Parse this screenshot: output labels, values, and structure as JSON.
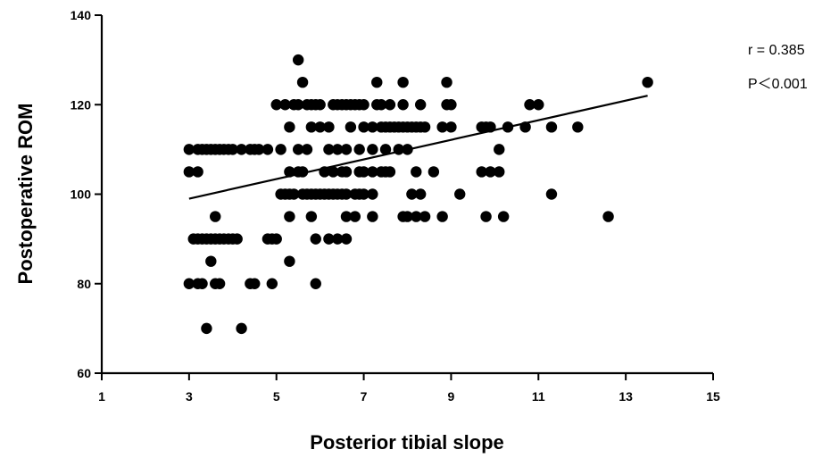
{
  "chart_data": {
    "type": "scatter",
    "xlabel": "Posterior tibial slope",
    "ylabel": "Postoperative ROM",
    "xlim": [
      1,
      15
    ],
    "ylim": [
      60,
      140
    ],
    "xticks": [
      1,
      3,
      5,
      7,
      9,
      11,
      13,
      15
    ],
    "yticks": [
      60,
      80,
      100,
      120,
      140
    ],
    "grid": false,
    "marker_color": "#000000",
    "annotations": {
      "r": "r = 0.385",
      "p": "P＜0.001"
    },
    "regression_line": {
      "x": [
        3.0,
        13.5
      ],
      "y": [
        99.0,
        122.0
      ]
    },
    "points": [
      [
        3.4,
        70
      ],
      [
        4.2,
        70
      ],
      [
        3.0,
        80
      ],
      [
        3.2,
        80
      ],
      [
        3.3,
        80
      ],
      [
        3.6,
        80
      ],
      [
        3.7,
        80
      ],
      [
        4.4,
        80
      ],
      [
        4.5,
        80
      ],
      [
        4.9,
        80
      ],
      [
        5.9,
        80
      ],
      [
        3.5,
        85
      ],
      [
        5.3,
        85
      ],
      [
        3.1,
        90
      ],
      [
        3.2,
        90
      ],
      [
        3.3,
        90
      ],
      [
        3.4,
        90
      ],
      [
        3.5,
        90
      ],
      [
        3.6,
        90
      ],
      [
        3.7,
        90
      ],
      [
        3.8,
        90
      ],
      [
        3.9,
        90
      ],
      [
        4.0,
        90
      ],
      [
        4.1,
        90
      ],
      [
        4.8,
        90
      ],
      [
        4.9,
        90
      ],
      [
        5.0,
        90
      ],
      [
        5.9,
        90
      ],
      [
        6.2,
        90
      ],
      [
        6.4,
        90
      ],
      [
        6.6,
        90
      ],
      [
        3.6,
        95
      ],
      [
        5.3,
        95
      ],
      [
        5.8,
        95
      ],
      [
        6.6,
        95
      ],
      [
        6.8,
        95
      ],
      [
        7.2,
        95
      ],
      [
        7.9,
        95
      ],
      [
        8.0,
        95
      ],
      [
        8.2,
        95
      ],
      [
        8.4,
        95
      ],
      [
        8.8,
        95
      ],
      [
        9.8,
        95
      ],
      [
        10.2,
        95
      ],
      [
        12.6,
        95
      ],
      [
        5.1,
        100
      ],
      [
        5.2,
        100
      ],
      [
        5.3,
        100
      ],
      [
        5.4,
        100
      ],
      [
        5.6,
        100
      ],
      [
        5.7,
        100
      ],
      [
        5.8,
        100
      ],
      [
        5.9,
        100
      ],
      [
        6.0,
        100
      ],
      [
        6.1,
        100
      ],
      [
        6.2,
        100
      ],
      [
        6.3,
        100
      ],
      [
        6.4,
        100
      ],
      [
        6.5,
        100
      ],
      [
        6.6,
        100
      ],
      [
        6.8,
        100
      ],
      [
        6.9,
        100
      ],
      [
        7.0,
        100
      ],
      [
        7.2,
        100
      ],
      [
        8.1,
        100
      ],
      [
        8.3,
        100
      ],
      [
        9.2,
        100
      ],
      [
        11.3,
        100
      ],
      [
        3.0,
        105
      ],
      [
        3.2,
        105
      ],
      [
        5.3,
        105
      ],
      [
        5.5,
        105
      ],
      [
        5.6,
        105
      ],
      [
        6.1,
        105
      ],
      [
        6.3,
        105
      ],
      [
        6.5,
        105
      ],
      [
        6.6,
        105
      ],
      [
        6.9,
        105
      ],
      [
        7.0,
        105
      ],
      [
        7.2,
        105
      ],
      [
        7.4,
        105
      ],
      [
        7.5,
        105
      ],
      [
        7.6,
        105
      ],
      [
        8.2,
        105
      ],
      [
        8.6,
        105
      ],
      [
        9.7,
        105
      ],
      [
        9.9,
        105
      ],
      [
        10.1,
        105
      ],
      [
        3.0,
        110
      ],
      [
        3.2,
        110
      ],
      [
        3.3,
        110
      ],
      [
        3.4,
        110
      ],
      [
        3.5,
        110
      ],
      [
        3.6,
        110
      ],
      [
        3.7,
        110
      ],
      [
        3.8,
        110
      ],
      [
        3.9,
        110
      ],
      [
        4.0,
        110
      ],
      [
        4.2,
        110
      ],
      [
        4.4,
        110
      ],
      [
        4.5,
        110
      ],
      [
        4.6,
        110
      ],
      [
        4.8,
        110
      ],
      [
        5.1,
        110
      ],
      [
        5.5,
        110
      ],
      [
        5.7,
        110
      ],
      [
        6.2,
        110
      ],
      [
        6.4,
        110
      ],
      [
        6.6,
        110
      ],
      [
        6.9,
        110
      ],
      [
        7.2,
        110
      ],
      [
        7.5,
        110
      ],
      [
        7.8,
        110
      ],
      [
        8.0,
        110
      ],
      [
        10.1,
        110
      ],
      [
        5.3,
        115
      ],
      [
        5.8,
        115
      ],
      [
        6.0,
        115
      ],
      [
        6.2,
        115
      ],
      [
        6.7,
        115
      ],
      [
        7.0,
        115
      ],
      [
        7.2,
        115
      ],
      [
        7.4,
        115
      ],
      [
        7.5,
        115
      ],
      [
        7.6,
        115
      ],
      [
        7.7,
        115
      ],
      [
        7.8,
        115
      ],
      [
        7.9,
        115
      ],
      [
        8.0,
        115
      ],
      [
        8.1,
        115
      ],
      [
        8.2,
        115
      ],
      [
        8.3,
        115
      ],
      [
        8.4,
        115
      ],
      [
        8.8,
        115
      ],
      [
        9.0,
        115
      ],
      [
        9.7,
        115
      ],
      [
        9.8,
        115
      ],
      [
        9.9,
        115
      ],
      [
        10.3,
        115
      ],
      [
        10.7,
        115
      ],
      [
        11.3,
        115
      ],
      [
        11.9,
        115
      ],
      [
        5.0,
        120
      ],
      [
        5.2,
        120
      ],
      [
        5.4,
        120
      ],
      [
        5.5,
        120
      ],
      [
        5.7,
        120
      ],
      [
        5.8,
        120
      ],
      [
        5.9,
        120
      ],
      [
        6.0,
        120
      ],
      [
        6.3,
        120
      ],
      [
        6.4,
        120
      ],
      [
        6.5,
        120
      ],
      [
        6.6,
        120
      ],
      [
        6.7,
        120
      ],
      [
        6.8,
        120
      ],
      [
        6.9,
        120
      ],
      [
        7.0,
        120
      ],
      [
        7.3,
        120
      ],
      [
        7.4,
        120
      ],
      [
        7.6,
        120
      ],
      [
        7.9,
        120
      ],
      [
        8.3,
        120
      ],
      [
        8.9,
        120
      ],
      [
        9.0,
        120
      ],
      [
        10.8,
        120
      ],
      [
        11.0,
        120
      ],
      [
        5.6,
        125
      ],
      [
        7.3,
        125
      ],
      [
        7.9,
        125
      ],
      [
        8.9,
        125
      ],
      [
        13.5,
        125
      ],
      [
        5.5,
        130
      ]
    ]
  }
}
